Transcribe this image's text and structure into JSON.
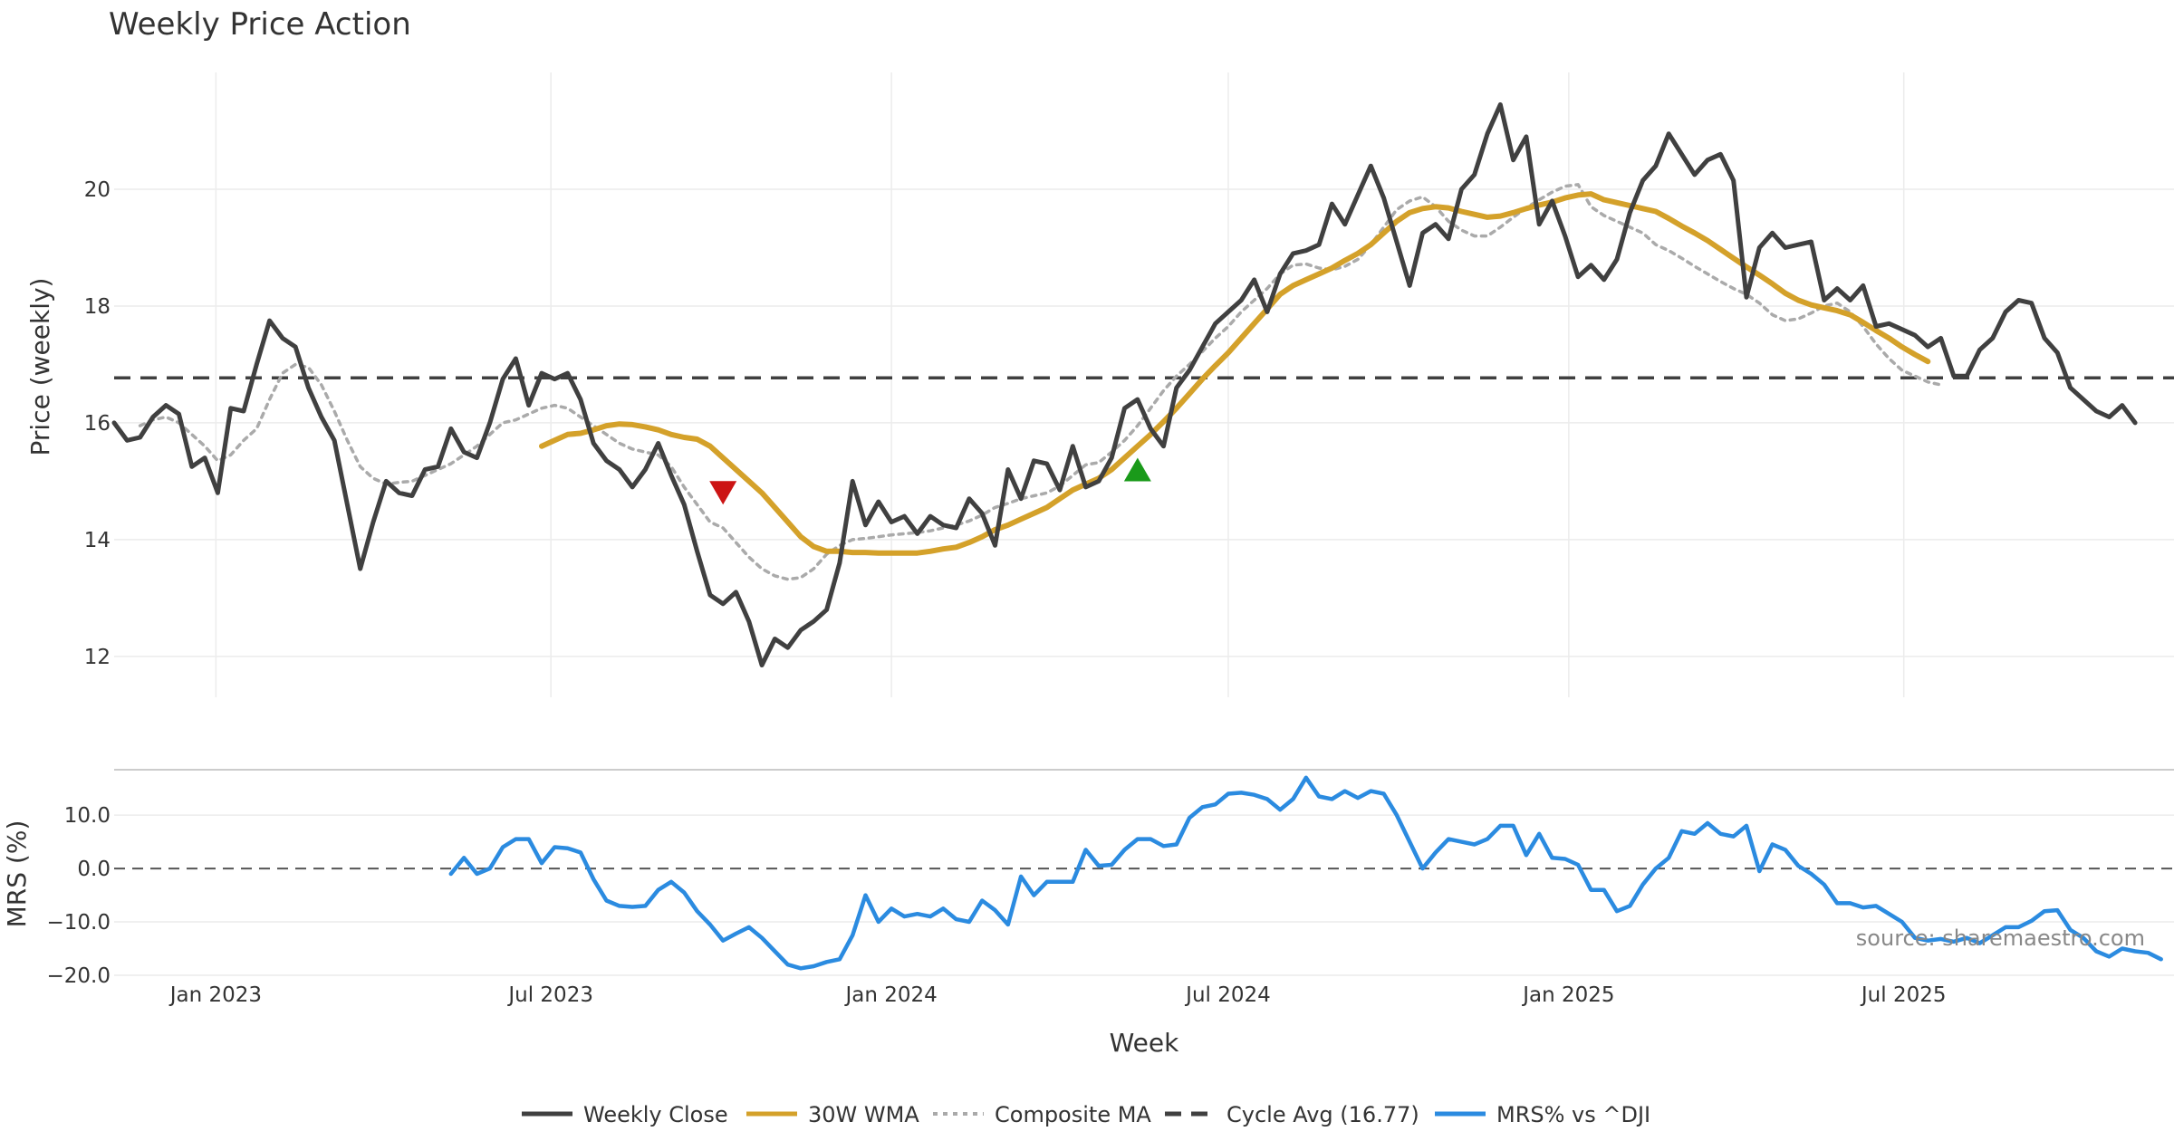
{
  "chart_data": {
    "type": "line",
    "title": "Weekly Price Action",
    "xlabel": "Week",
    "ylabel": "Price (weekly)",
    "ylabel2": "MRS (%)",
    "source": "source: sharemaestro.com",
    "x_start": "2022-11-07",
    "x_step_days": 7,
    "x_ticks": [
      {
        "date": "2023-01-01",
        "label": "Jan 2023"
      },
      {
        "date": "2023-07-01",
        "label": "Jul 2023"
      },
      {
        "date": "2024-01-01",
        "label": "Jan 2024"
      },
      {
        "date": "2024-07-01",
        "label": "Jul 2024"
      },
      {
        "date": "2025-01-01",
        "label": "Jan 2025"
      },
      {
        "date": "2025-07-01",
        "label": "Jul 2025"
      }
    ],
    "xlim": [
      "2022-11-07",
      "2025-11-24"
    ],
    "ylim": [
      11.3,
      22.0
    ],
    "y_ticks": [
      12,
      14,
      16,
      18,
      20
    ],
    "ylim2": [
      -20.0,
      18.5
    ],
    "y2_ticks": [
      {
        "value": 10,
        "label": "10.0"
      },
      {
        "value": 0,
        "label": "0.0"
      },
      {
        "value": -10,
        "label": "−10.0"
      },
      {
        "value": -20,
        "label": "−20.0"
      }
    ],
    "cycle_avg": 16.77,
    "grid": true,
    "legend_position": "bottom",
    "series": [
      {
        "name": "Weekly Close",
        "color": "#404040",
        "start_index": 0,
        "values": [
          16.0,
          15.7,
          15.75,
          16.1,
          16.3,
          16.15,
          15.25,
          15.4,
          14.8,
          16.25,
          16.2,
          17.0,
          17.75,
          17.45,
          17.3,
          16.6,
          16.1,
          15.7,
          14.6,
          13.5,
          14.3,
          15.0,
          14.8,
          14.75,
          15.2,
          15.25,
          15.9,
          15.5,
          15.4,
          16.0,
          16.75,
          17.1,
          16.3,
          16.85,
          16.75,
          16.85,
          16.4,
          15.65,
          15.35,
          15.2,
          14.9,
          15.2,
          15.65,
          15.1,
          14.6,
          13.8,
          13.05,
          12.9,
          13.1,
          12.6,
          11.85,
          12.3,
          12.15,
          12.45,
          12.6,
          12.8,
          13.6,
          15.0,
          14.25,
          14.65,
          14.3,
          14.4,
          14.1,
          14.4,
          14.25,
          14.2,
          14.7,
          14.45,
          13.9,
          15.2,
          14.7,
          15.35,
          15.3,
          14.85,
          15.6,
          14.9,
          15.0,
          15.4,
          16.25,
          16.4,
          15.9,
          15.6,
          16.6,
          16.9,
          17.3,
          17.7,
          17.9,
          18.1,
          18.45,
          17.9,
          18.55,
          18.9,
          18.95,
          19.05,
          19.75,
          19.4,
          19.9,
          20.4,
          19.85,
          19.1,
          18.35,
          19.25,
          19.4,
          19.15,
          20.0,
          20.25,
          20.95,
          21.45,
          20.5,
          20.9,
          19.4,
          19.8,
          19.2,
          18.5,
          18.7,
          18.45,
          18.8,
          19.6,
          20.15,
          20.4,
          20.95,
          20.6,
          20.25,
          20.5,
          20.6,
          20.15,
          18.15,
          19.0,
          19.25,
          19.0,
          19.05,
          19.1,
          18.1,
          18.3,
          18.1,
          18.35,
          17.65,
          17.7,
          17.6,
          17.5,
          17.3,
          17.45,
          16.8,
          16.8,
          17.25,
          17.45,
          17.9,
          18.1,
          18.05,
          17.45,
          17.2,
          16.6,
          16.4,
          16.2,
          16.1,
          16.3,
          16.0
        ]
      },
      {
        "name": "30W WMA",
        "color": "#D4A12A",
        "start_index": 33,
        "values": [
          15.6,
          15.7,
          15.8,
          15.82,
          15.88,
          15.95,
          15.98,
          15.97,
          15.93,
          15.88,
          15.8,
          15.75,
          15.72,
          15.6,
          15.4,
          15.2,
          15.0,
          14.8,
          14.55,
          14.3,
          14.05,
          13.88,
          13.8,
          13.8,
          13.78,
          13.78,
          13.77,
          13.77,
          13.77,
          13.77,
          13.8,
          13.84,
          13.87,
          13.95,
          14.05,
          14.17,
          14.25,
          14.35,
          14.45,
          14.55,
          14.7,
          14.85,
          14.95,
          15.05,
          15.2,
          15.4,
          15.6,
          15.8,
          16.02,
          16.25,
          16.5,
          16.75,
          16.98,
          17.2,
          17.45,
          17.7,
          17.95,
          18.2,
          18.35,
          18.45,
          18.55,
          18.65,
          18.78,
          18.9,
          19.05,
          19.25,
          19.45,
          19.6,
          19.67,
          19.7,
          19.68,
          19.62,
          19.57,
          19.52,
          19.54,
          19.6,
          19.67,
          19.73,
          19.78,
          19.85,
          19.9,
          19.92,
          19.82,
          19.77,
          19.72,
          19.67,
          19.62,
          19.5,
          19.37,
          19.25,
          19.12,
          18.97,
          18.82,
          18.67,
          18.53,
          18.38,
          18.22,
          18.1,
          18.02,
          17.97,
          17.92,
          17.85,
          17.72,
          17.58,
          17.45,
          17.3,
          17.17,
          17.05
        ]
      },
      {
        "name": "Composite MA",
        "color": "#AAAAAA",
        "start_index": 2,
        "values": [
          15.95,
          16.05,
          16.1,
          16.0,
          15.8,
          15.6,
          15.35,
          15.45,
          15.7,
          15.9,
          16.4,
          16.85,
          17.0,
          16.95,
          16.65,
          16.2,
          15.7,
          15.25,
          15.05,
          14.95,
          14.98,
          15.0,
          15.1,
          15.2,
          15.3,
          15.45,
          15.6,
          15.8,
          16.0,
          16.05,
          16.15,
          16.25,
          16.3,
          16.25,
          16.1,
          15.95,
          15.8,
          15.65,
          15.55,
          15.5,
          15.45,
          15.25,
          14.9,
          14.6,
          14.3,
          14.2,
          13.95,
          13.7,
          13.5,
          13.38,
          13.32,
          13.35,
          13.5,
          13.75,
          13.9,
          14.0,
          14.02,
          14.05,
          14.08,
          14.1,
          14.12,
          14.15,
          14.2,
          14.25,
          14.32,
          14.42,
          14.55,
          14.62,
          14.7,
          14.75,
          14.8,
          14.92,
          15.1,
          15.28,
          15.32,
          15.5,
          15.7,
          15.95,
          16.25,
          16.55,
          16.8,
          17.0,
          17.22,
          17.45,
          17.65,
          17.9,
          18.1,
          18.3,
          18.55,
          18.7,
          18.72,
          18.65,
          18.62,
          18.68,
          18.8,
          19.05,
          19.35,
          19.65,
          19.8,
          19.87,
          19.7,
          19.45,
          19.3,
          19.2,
          19.2,
          19.35,
          19.52,
          19.68,
          19.82,
          19.95,
          20.05,
          20.08,
          19.7,
          19.55,
          19.45,
          19.35,
          19.25,
          19.05,
          18.95,
          18.82,
          18.68,
          18.55,
          18.42,
          18.3,
          18.2,
          18.05,
          17.85,
          17.75,
          17.78,
          17.88,
          18.0,
          18.05,
          17.9,
          17.65,
          17.35,
          17.1,
          16.9,
          16.8,
          16.7,
          16.65
        ]
      },
      {
        "name": "MRS% vs ^DJI",
        "color": "#2B8BE0",
        "start_index": 26,
        "values": [
          -1.0,
          2.0,
          -1.0,
          0.0,
          4.0,
          5.5,
          5.5,
          1.0,
          4.0,
          3.8,
          3.0,
          -2.0,
          -6.0,
          -7.0,
          -7.2,
          -7.0,
          -4.0,
          -2.5,
          -4.5,
          -8.0,
          -10.5,
          -13.5,
          -12.2,
          -11.0,
          -13.0,
          -15.5,
          -18.0,
          -18.7,
          -18.3,
          -17.5,
          -17.0,
          -12.5,
          -5.0,
          -10.0,
          -7.5,
          -9.0,
          -8.5,
          -9.0,
          -7.5,
          -9.5,
          -10.0,
          -6.0,
          -7.8,
          -10.5,
          -1.5,
          -5.0,
          -2.5,
          -2.5,
          -2.5,
          3.5,
          0.5,
          0.7,
          3.5,
          5.5,
          5.5,
          4.2,
          4.5,
          9.5,
          11.5,
          12.0,
          14.0,
          14.2,
          13.8,
          13.0,
          11.0,
          13.0,
          17.0,
          13.5,
          13.0,
          14.5,
          13.2,
          14.5,
          14.0,
          10.0,
          5.0,
          0.0,
          3.0,
          5.5,
          5.0,
          4.5,
          5.5,
          8.0,
          8.0,
          2.5,
          6.5,
          2.0,
          1.8,
          0.7,
          -4.0,
          -4.0,
          -8.0,
          -7.0,
          -3.0,
          0.0,
          2.0,
          7.0,
          6.5,
          8.5,
          6.5,
          6.0,
          8.0,
          -0.5,
          4.5,
          3.5,
          0.5,
          -1.0,
          -3.0,
          -6.5,
          -6.5,
          -7.3,
          -7.0,
          -8.5,
          -10.0,
          -13.0,
          -13.5,
          -13.2,
          -13.7,
          -13.0,
          -14.0,
          -12.5,
          -11.0,
          -11.0,
          -9.8,
          -8.0,
          -7.8,
          -11.5,
          -13.0,
          -15.5,
          -16.5,
          -15.0,
          -15.5,
          -15.8,
          -17.0
        ]
      }
    ],
    "legend": [
      {
        "name": "Weekly Close",
        "style": "solid",
        "color": "#404040"
      },
      {
        "name": "30W WMA",
        "style": "solid",
        "color": "#D4A12A"
      },
      {
        "name": "Composite MA",
        "style": "dotted",
        "color": "#AAAAAA"
      },
      {
        "name": "Cycle Avg (16.77)",
        "style": "dashed",
        "color": "#404040"
      },
      {
        "name": "MRS% vs ^DJI",
        "style": "solid",
        "color": "#2B8BE0"
      }
    ],
    "markers": [
      {
        "type": "sell",
        "date": "2023-10-02",
        "y": 14.8,
        "color": "#CC1414",
        "shape": "triangle-down"
      },
      {
        "type": "buy",
        "date": "2024-05-13",
        "y": 15.2,
        "color": "#1A9A1A",
        "shape": "triangle-up"
      }
    ]
  }
}
